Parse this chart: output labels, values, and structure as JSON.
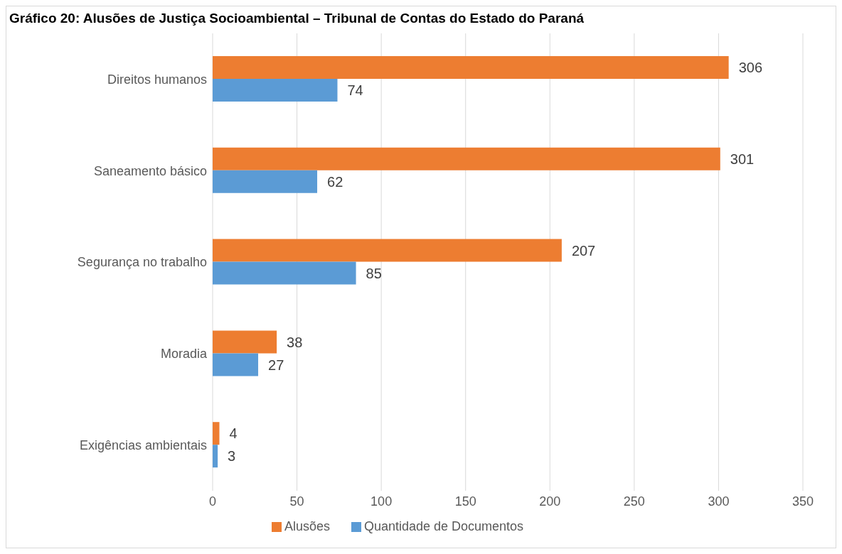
{
  "chart_data": {
    "type": "bar",
    "orientation": "horizontal",
    "title": "Gráfico 20: Alusões de Justiça Socioambiental – Tribunal de Contas do Estado do Paraná",
    "categories": [
      "Direitos humanos",
      "Saneamento básico",
      "Segurança no trabalho",
      "Moradia",
      "Exigências ambientais"
    ],
    "series": [
      {
        "name": "Alusões",
        "color": "#ed7d31",
        "values": [
          306,
          301,
          207,
          38,
          4
        ]
      },
      {
        "name": "Quantidade de Documentos",
        "color": "#5b9bd5",
        "values": [
          74,
          62,
          85,
          27,
          3
        ]
      }
    ],
    "xlim": [
      0,
      350
    ],
    "xticks": [
      0,
      50,
      100,
      150,
      200,
      250,
      300,
      350
    ],
    "grid": "x",
    "legend": "bottom",
    "data_labels": true
  }
}
